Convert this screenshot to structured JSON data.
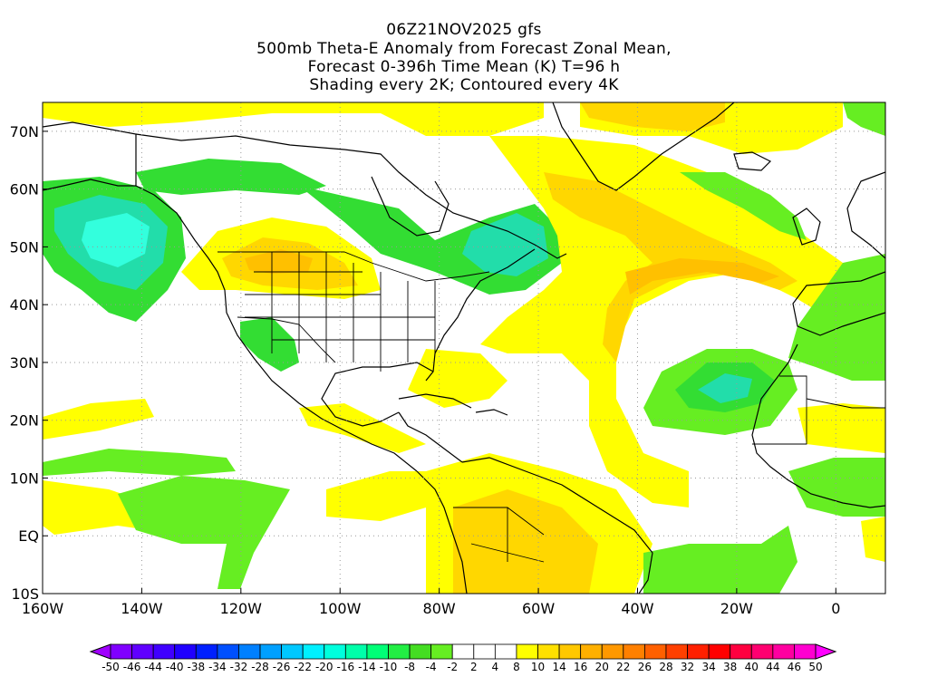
{
  "title": {
    "line1": "06Z21NOV2025 gfs",
    "line2": "500mb Theta-E Anomaly from Forecast Zonal Mean,",
    "line3": "Forecast 0-396h Time Mean (K) T=96 h",
    "line4": "Shading every 2K; Contoured every 4K"
  },
  "map": {
    "lon_range": [
      -160,
      10
    ],
    "lat_range": [
      -10,
      75
    ],
    "lat_ticks": [
      "70N",
      "60N",
      "50N",
      "40N",
      "30N",
      "20N",
      "10N",
      "EQ",
      "10S"
    ],
    "lat_values": [
      70,
      60,
      50,
      40,
      30,
      20,
      10,
      0,
      -10
    ],
    "lon_ticks": [
      "160W",
      "140W",
      "120W",
      "100W",
      "80W",
      "60W",
      "40W",
      "20W",
      "0"
    ],
    "lon_values": [
      -160,
      -140,
      -120,
      -100,
      -80,
      -60,
      -40,
      -20,
      0
    ]
  },
  "colors": {
    "yellow": "#ffff00",
    "gold": "#ffd700",
    "orange_light": "#ffc000",
    "green_light": "#66ee22",
    "green": "#33dd33",
    "teal": "#22ddaa",
    "cyan": "#33ffdd",
    "coast": "#000000",
    "grid": "#999999"
  },
  "colorbar": {
    "labels": [
      "-50",
      "-46",
      "-44",
      "-40",
      "-38",
      "-34",
      "-32",
      "-28",
      "-26",
      "-22",
      "-20",
      "-16",
      "-14",
      "-10",
      "-8",
      "-4",
      "-2",
      "2",
      "4",
      "8",
      "10",
      "14",
      "16",
      "20",
      "22",
      "26",
      "28",
      "32",
      "34",
      "38",
      "40",
      "44",
      "46",
      "50"
    ],
    "colors": [
      "#a000ff",
      "#8000ff",
      "#6000ff",
      "#4000ff",
      "#2000ff",
      "#0020ff",
      "#0050ff",
      "#0080ff",
      "#00a0ff",
      "#00c8ff",
      "#00f0ff",
      "#00ffdd",
      "#00ffaa",
      "#00ff77",
      "#22ee44",
      "#44dd22",
      "#66ee22",
      "#ffffff",
      "#ffffff",
      "#ffffff",
      "#ffff00",
      "#ffe000",
      "#ffc800",
      "#ffb000",
      "#ff9800",
      "#ff8000",
      "#ff6000",
      "#ff4000",
      "#ff2000",
      "#ff0000",
      "#ff0040",
      "#ff0070",
      "#ff00a0",
      "#ff00d0",
      "#ff00ff"
    ]
  }
}
